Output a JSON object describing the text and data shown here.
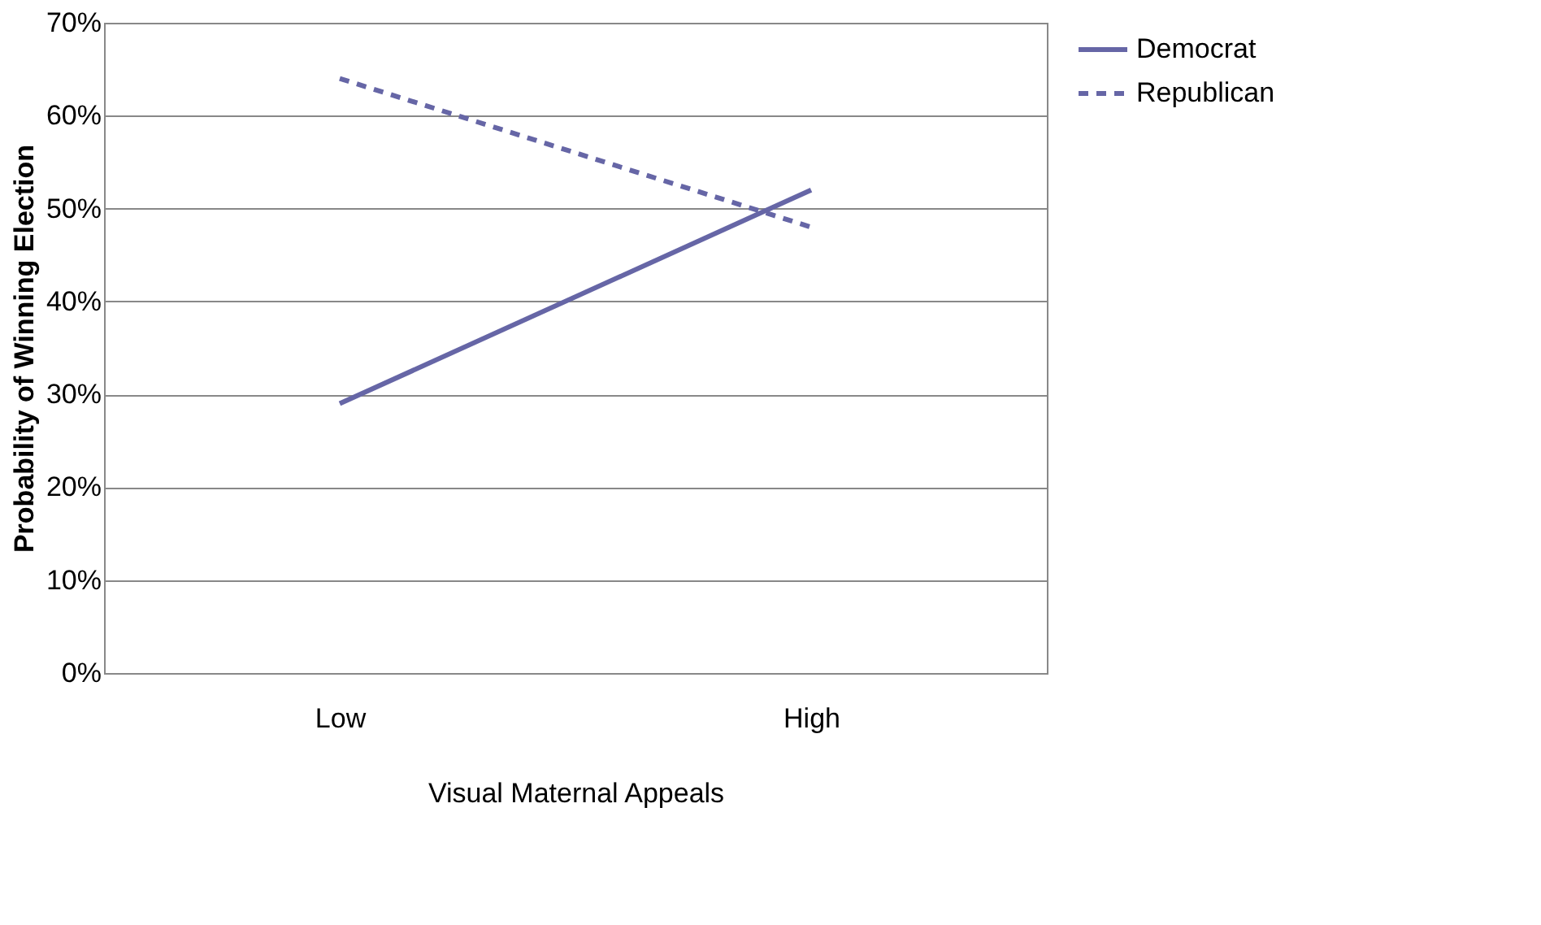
{
  "chart_data": {
    "type": "line",
    "xlabel": "Visual Maternal Appeals",
    "ylabel": "Probability of Winning Election",
    "categories": [
      "Low",
      "High"
    ],
    "series": [
      {
        "name": "Democrat",
        "color": "#6666a6",
        "values": [
          29,
          52
        ],
        "line_style": "solid"
      },
      {
        "name": "Republican",
        "color": "#6666a6",
        "values": [
          64,
          48
        ],
        "line_style": "dashed"
      }
    ],
    "ylim": [
      0,
      70
    ],
    "yticks": [
      {
        "value": 0,
        "label": "0%"
      },
      {
        "value": 10,
        "label": "10%"
      },
      {
        "value": 20,
        "label": "20%"
      },
      {
        "value": 30,
        "label": "30%"
      },
      {
        "value": 40,
        "label": "40%"
      },
      {
        "value": 50,
        "label": "50%"
      },
      {
        "value": 60,
        "label": "60%"
      },
      {
        "value": 70,
        "label": "70%"
      }
    ],
    "grid": "y",
    "legend": "right",
    "marker": "none"
  }
}
